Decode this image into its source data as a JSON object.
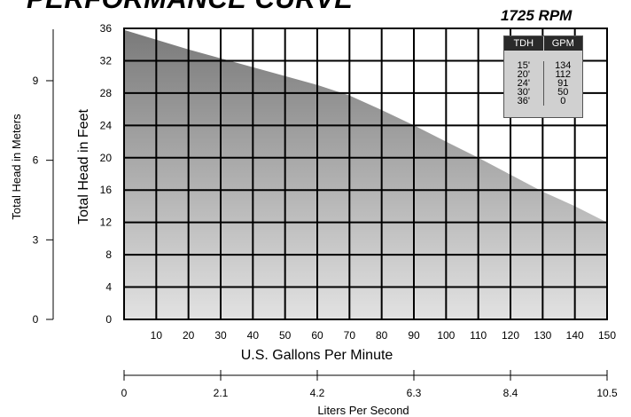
{
  "title": "PERFORMANCE CURVE",
  "rpm_label": "1725 RPM",
  "table": {
    "headers": [
      "TDH",
      "GPM"
    ],
    "rows": [
      {
        "tdh": "15'",
        "gpm": "134"
      },
      {
        "tdh": "20'",
        "gpm": "112"
      },
      {
        "tdh": "24'",
        "gpm": "91"
      },
      {
        "tdh": "30'",
        "gpm": "50"
      },
      {
        "tdh": "36'",
        "gpm": "0"
      }
    ]
  },
  "chart_data": {
    "type": "area",
    "xlabel": "U.S. Gallons Per Minute",
    "ylabel": "Total Head in Feet",
    "xlim": [
      0,
      150
    ],
    "ylim": [
      0,
      36
    ],
    "x_ticks": [
      10,
      20,
      30,
      40,
      50,
      60,
      70,
      80,
      90,
      100,
      110,
      120,
      130,
      140,
      150
    ],
    "y_ticks": [
      0,
      4,
      8,
      12,
      16,
      20,
      24,
      28,
      32,
      36
    ],
    "grid": true,
    "x": [
      0,
      10,
      20,
      30,
      40,
      50,
      60,
      70,
      80,
      90,
      100,
      110,
      120,
      130,
      140,
      150
    ],
    "y": [
      35.8,
      34.6,
      33.4,
      32.3,
      31.2,
      30.1,
      29.0,
      27.7,
      25.9,
      24.0,
      22.0,
      20.0,
      17.9,
      15.8,
      14.0,
      12.0
    ],
    "secondary_y": {
      "label": "Total Head in Meters",
      "ticks": [
        0,
        3,
        6,
        9
      ]
    },
    "secondary_x": {
      "label": "Liters Per Second",
      "ticks": [
        "0",
        "2.1",
        "4.2",
        "6.3",
        "8.4",
        "10.5"
      ]
    }
  }
}
